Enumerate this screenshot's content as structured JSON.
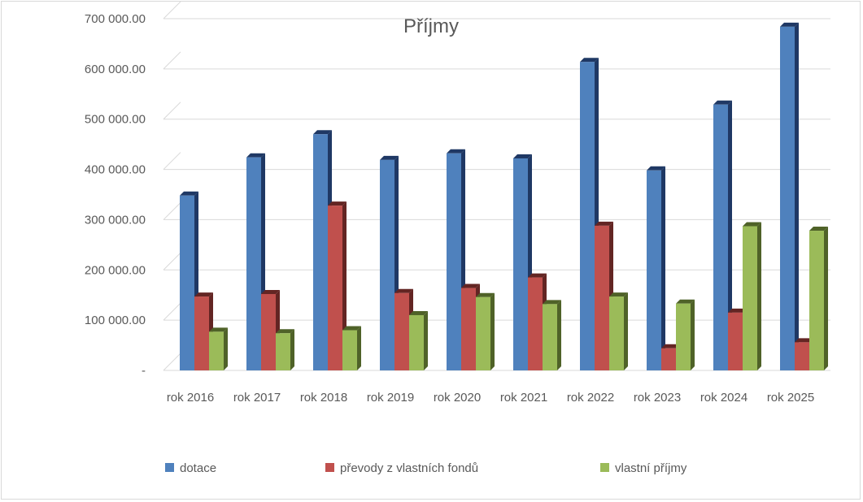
{
  "chart_data": {
    "type": "bar",
    "title": "Příjmy",
    "xlabel": "",
    "ylabel": "",
    "ylim": [
      0,
      700000
    ],
    "ytick_values": [
      0,
      100000,
      200000,
      300000,
      400000,
      500000,
      600000,
      700000
    ],
    "ytick_labels": [
      "-",
      "100 000.00",
      "200 000.00",
      "300 000.00",
      "400 000.00",
      "500 000.00",
      "600 000.00",
      "700 000.00"
    ],
    "categories": [
      "rok 2016",
      "rok 2017",
      "rok 2018",
      "rok 2019",
      "rok 2020",
      "rok 2021",
      "rok 2022",
      "rok 2023",
      "rok 2024",
      "rok 2025"
    ],
    "series": [
      {
        "name": "dotace",
        "color": "#4f81bd",
        "side_color": "#1f3864",
        "values": [
          348000,
          424000,
          470000,
          419000,
          432000,
          422000,
          614000,
          398000,
          529000,
          684000
        ]
      },
      {
        "name": "převody z vlastních fondů",
        "color": "#c0504d",
        "side_color": "#632523",
        "values": [
          147000,
          152000,
          328000,
          154000,
          164000,
          185000,
          288000,
          44000,
          115000,
          56000
        ]
      },
      {
        "name": "vlastní příjmy",
        "color": "#9bbb59",
        "side_color": "#4f6228",
        "values": [
          77000,
          74000,
          80000,
          110000,
          146000,
          132000,
          147000,
          133000,
          287000,
          278000
        ]
      }
    ],
    "grid": true,
    "legend_position": "bottom"
  }
}
